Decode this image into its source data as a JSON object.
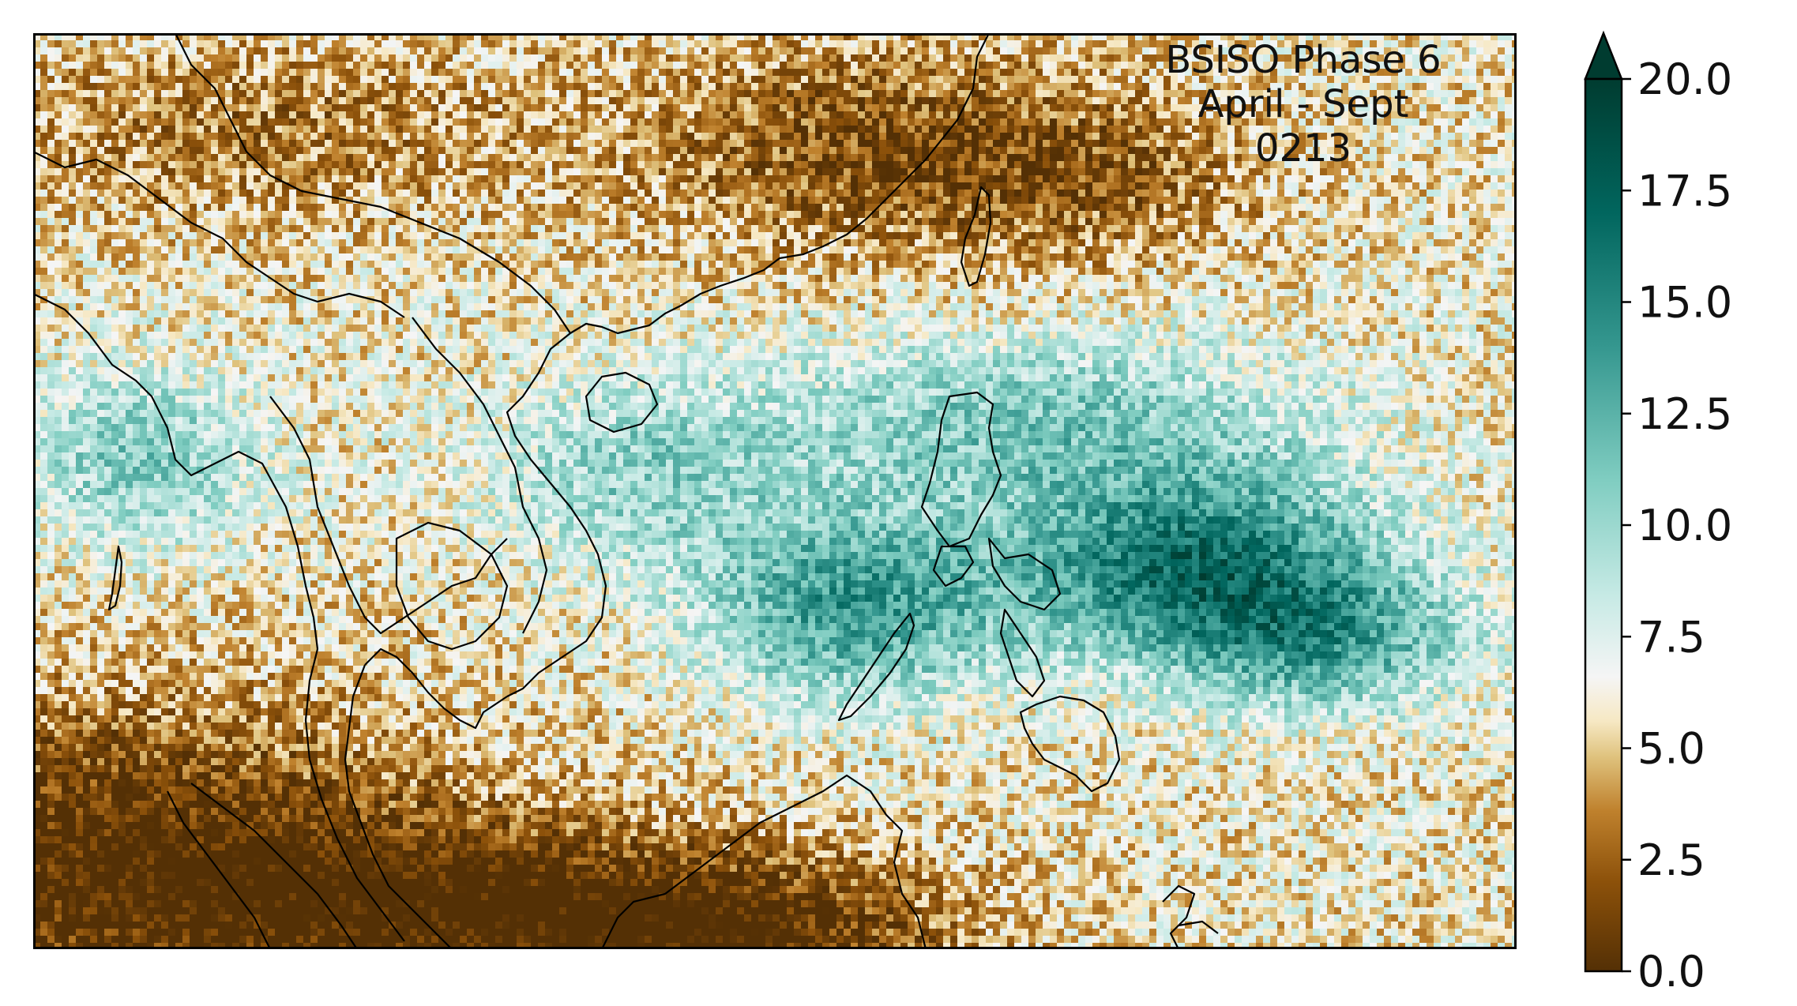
{
  "map": {
    "annotation": [
      "BSISO Phase 6",
      "April - Sept",
      "0213"
    ],
    "colormap": "BrBG"
  },
  "colorbar": {
    "min": 0.0,
    "max": 20.0,
    "extend": "max",
    "ticks": [
      "0.0",
      "2.5",
      "5.0",
      "7.5",
      "10.0",
      "12.5",
      "15.0",
      "17.5",
      "20.0"
    ]
  }
}
